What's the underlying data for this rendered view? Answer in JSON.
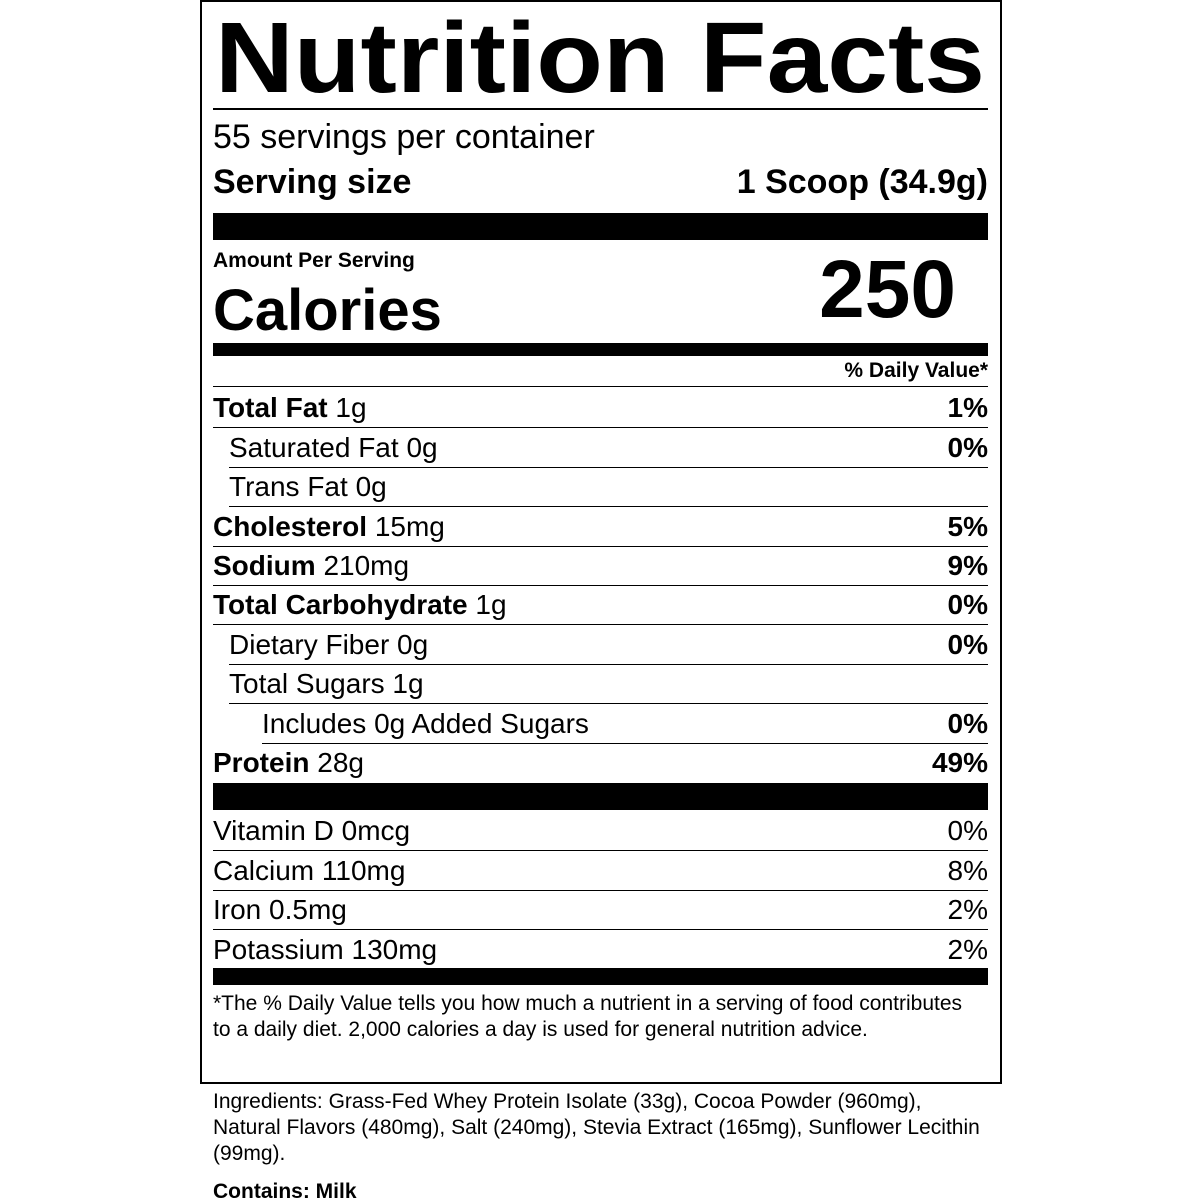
{
  "title": "Nutrition Facts",
  "servings": "55 servings per container",
  "serving_size": {
    "label": "Serving size",
    "value": "1 Scoop (34.9g)"
  },
  "amount_per_serving": "Amount Per Serving",
  "calories": {
    "label": "Calories",
    "value": "250"
  },
  "daily_value_header": "% Daily Value*",
  "nutrients": [
    {
      "name": "Total Fat",
      "amount": "1g",
      "dv": "1%"
    },
    {
      "name": "Saturated Fat",
      "amount": "0g",
      "dv": "0%"
    },
    {
      "name": "Trans Fat",
      "amount": "0g"
    },
    {
      "name": "Cholesterol",
      "amount": "15mg",
      "dv": "5%"
    },
    {
      "name": "Sodium",
      "amount": "210mg",
      "dv": "9%"
    },
    {
      "name": "Total Carbohydrate",
      "amount": "1g",
      "dv": "0%"
    },
    {
      "name": "Dietary Fiber",
      "amount": "0g",
      "dv": "0%"
    },
    {
      "name": "Total Sugars",
      "amount": "1g"
    },
    {
      "name": "Includes 0g Added Sugars",
      "dv": "0%"
    },
    {
      "name": "Protein",
      "amount": "28g",
      "dv": "49%"
    }
  ],
  "vitamins": [
    {
      "name": "Vitamin D",
      "amount": "0mcg",
      "dv": "0%"
    },
    {
      "name": "Calcium",
      "amount": "110mg",
      "dv": "8%"
    },
    {
      "name": "Iron",
      "amount": "0.5mg",
      "dv": "2%"
    },
    {
      "name": "Potassium",
      "amount": "130mg",
      "dv": "2%"
    }
  ],
  "footnote": "*The % Daily Value tells you how much a nutrient in a serving of food contributes to a daily diet. 2,000 calories a day is used for general nutrition advice.",
  "ingredients": "Ingredients: Grass-Fed Whey Protein Isolate (33g), Cocoa Powder (960mg), Natural Flavors (480mg), Salt (240mg), Stevia Extract (165mg), Sunflower Lecithin (99mg).",
  "contains": "Contains: Milk"
}
